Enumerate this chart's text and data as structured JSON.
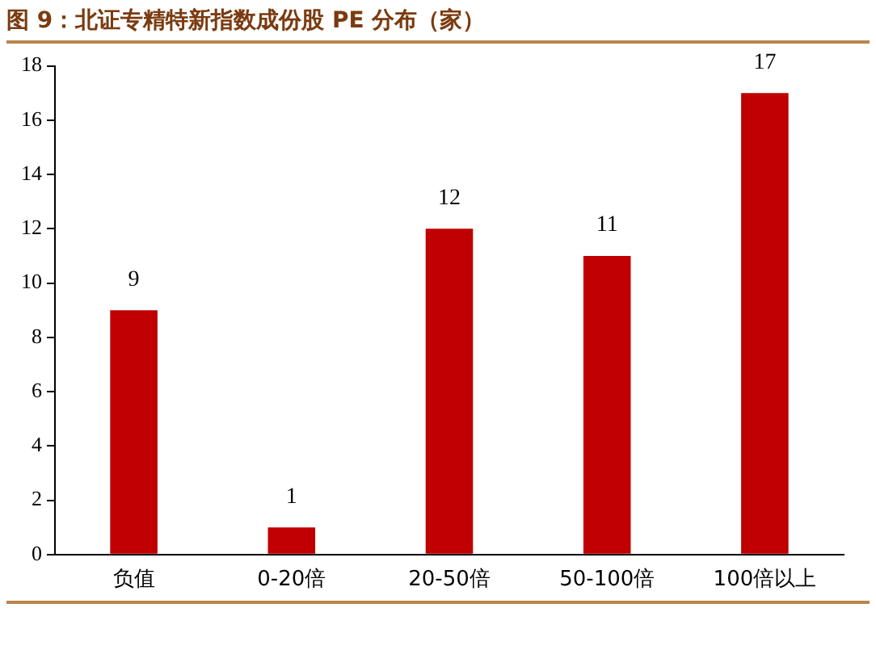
{
  "chart_data": {
    "type": "bar",
    "title": "图 9：北证专精特新指数成份股 PE 分布（家）",
    "categories": [
      "负值",
      "0-20倍",
      "20-50倍",
      "50-100倍",
      "100倍以上"
    ],
    "values": [
      9,
      1,
      12,
      11,
      17
    ],
    "color": "#c00000",
    "ylim": [
      0,
      18
    ],
    "yticks": [
      0,
      2,
      4,
      6,
      8,
      10,
      12,
      14,
      16,
      18
    ],
    "grid": false,
    "data_labels": true
  }
}
